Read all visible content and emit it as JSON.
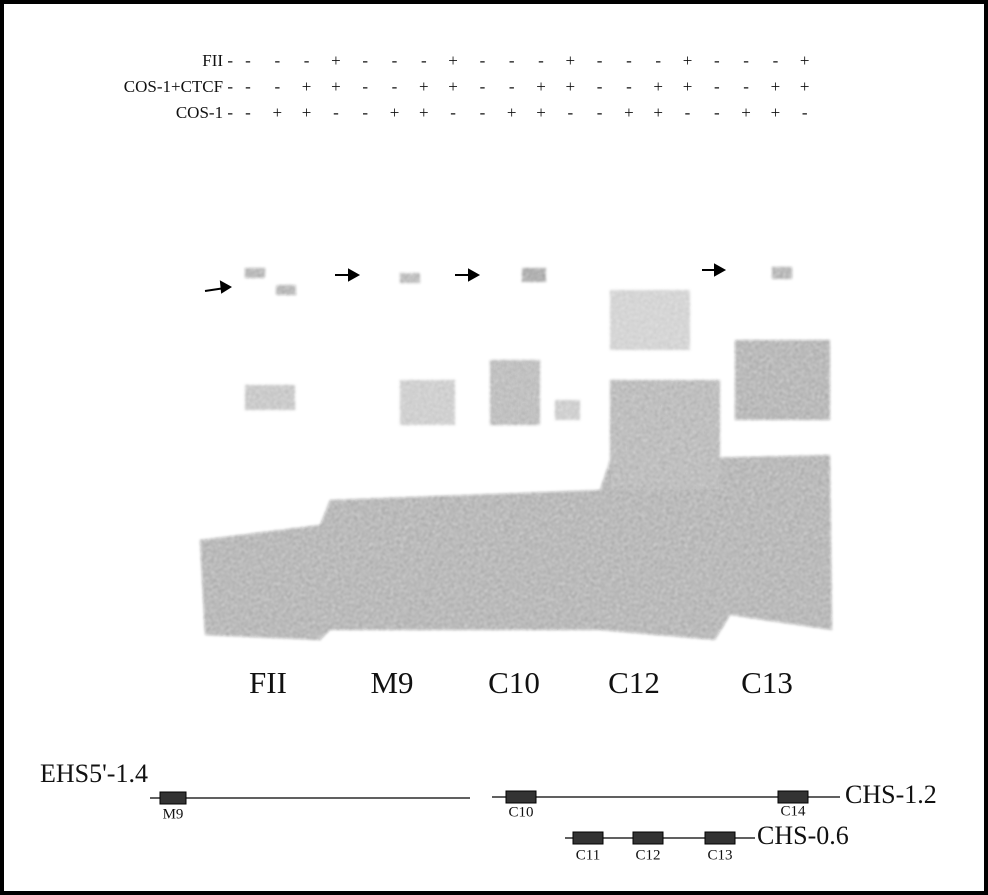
{
  "lane_conditions": [
    {
      "label": "FII -",
      "signs": [
        "-",
        "-",
        "-",
        "+",
        "-",
        "-",
        "-",
        "+",
        "-",
        "-",
        "-",
        "+",
        "-",
        "-",
        "-",
        "+",
        "-",
        "-",
        "-",
        "+"
      ]
    },
    {
      "label": "COS-1+CTCF -",
      "signs": [
        "-",
        "-",
        "+",
        "+",
        "-",
        "-",
        "+",
        "+",
        "-",
        "-",
        "+",
        "+",
        "-",
        "-",
        "+",
        "+",
        "-",
        "-",
        "+",
        "+"
      ]
    },
    {
      "label": "COS-1 -",
      "signs": [
        "-",
        "+",
        "+",
        "-",
        "-",
        "+",
        "+",
        "-",
        "-",
        "+",
        "+",
        "-",
        "-",
        "+",
        "+",
        "-",
        "-",
        "+",
        "+",
        "-"
      ]
    }
  ],
  "groups": [
    "FII",
    "M9",
    "C10",
    "C12",
    "C13"
  ],
  "map": {
    "top_construct": "EHS5'-1.4",
    "right_construct": "CHS-1.2",
    "lower_construct": "CHS-0.6",
    "elements": {
      "m9": "M9",
      "c10": "C10",
      "c14": "C14",
      "c11": "C11",
      "c12": "C12",
      "c13": "C13"
    }
  }
}
